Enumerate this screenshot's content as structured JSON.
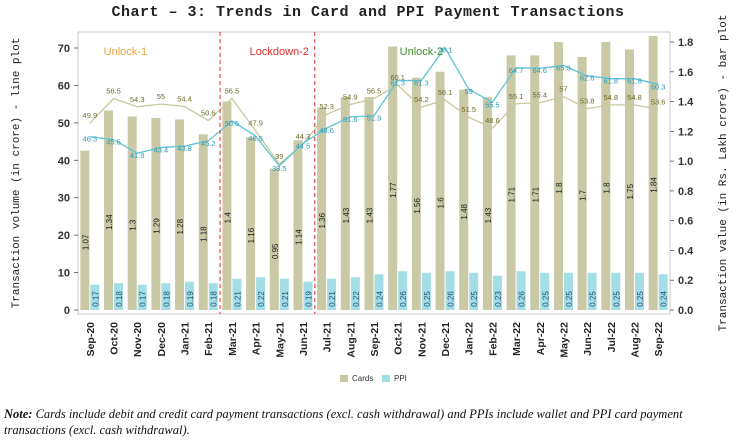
{
  "chart_data": {
    "type": "bar+line",
    "title": "Chart – 3: Trends in Card and PPI Payment Transactions",
    "categories": [
      "Sep-20",
      "Oct-20",
      "Nov-20",
      "Dec-20",
      "Jan-21",
      "Feb-21",
      "Mar-21",
      "Apr-21",
      "May-21",
      "Jun-21",
      "Jul-21",
      "Aug-21",
      "Sep-21",
      "Oct-21",
      "Nov-21",
      "Dec-21",
      "Jan-22",
      "Feb-22",
      "Mar-22",
      "Apr-22",
      "May-22",
      "Jun-22",
      "Jul-22",
      "Aug-22",
      "Sep-22"
    ],
    "bar_series": [
      {
        "name": "Cards",
        "color": "#c9c9a6",
        "label_color": "#1a1a1a",
        "values": [
          1.07,
          1.34,
          1.3,
          1.29,
          1.28,
          1.18,
          1.4,
          1.16,
          0.95,
          1.14,
          1.36,
          1.43,
          1.43,
          1.77,
          1.56,
          1.6,
          1.48,
          1.43,
          1.71,
          1.71,
          1.8,
          1.7,
          1.8,
          1.75,
          1.84
        ]
      },
      {
        "name": "PPI",
        "color": "#a3dde6",
        "label_color": "#1f4f73",
        "values": [
          0.17,
          0.18,
          0.17,
          0.18,
          0.19,
          0.18,
          0.21,
          0.22,
          0.21,
          0.19,
          0.21,
          0.22,
          0.24,
          0.26,
          0.25,
          0.26,
          0.25,
          0.23,
          0.26,
          0.25,
          0.25,
          0.25,
          0.25,
          0.25,
          0.24
        ]
      }
    ],
    "line_series": [
      {
        "name": "Cards volume",
        "color": "#c8c8a0",
        "label_color": "#6b6b2a",
        "values": [
          49.9,
          56.5,
          54.3,
          55,
          54.4,
          50.6,
          56.5,
          47.9,
          39,
          44.3,
          52.3,
          54.9,
          56.5,
          60.1,
          54.2,
          56.1,
          51.5,
          48.6,
          55.1,
          55.4,
          57,
          53.8,
          54.8,
          54.8,
          53.6
        ]
      },
      {
        "name": "PPI volume",
        "color": "#5fc3d6",
        "label_color": "#2a9ab8",
        "values": [
          46.3,
          45.5,
          41.9,
          43.4,
          43.8,
          45.2,
          50.5,
          46.5,
          38.5,
          44.5,
          48.6,
          51.6,
          51.9,
          61.3,
          61.3,
          70.1,
          59.0,
          55.5,
          64.7,
          64.6,
          65.3,
          62.6,
          61.8,
          61.8,
          60.3
        ]
      }
    ],
    "y_left": {
      "label": "Transaction volume (in crore) - line plot",
      "range": [
        0,
        70
      ],
      "ticks": [
        "0",
        "10",
        "20",
        "30",
        "40",
        "50",
        "60",
        "70"
      ]
    },
    "y_right": {
      "label": "Transaction value (in Rs. Lakh crore) - bar plot",
      "range": [
        0,
        1.8
      ],
      "ticks": [
        "0.0",
        "0.2",
        "0.4",
        "0.6",
        "0.8",
        "1.0",
        "1.2",
        "1.4",
        "1.6",
        "1.8"
      ]
    },
    "phase_markers": [
      {
        "label": "Unlock-1",
        "color": "#e8a33a",
        "position": "left"
      },
      {
        "label": "Lockdown-2",
        "color": "#e02b2b",
        "position": "center-left"
      },
      {
        "label": "Unlock-2",
        "color": "#3f8f2b",
        "position": "center-right"
      }
    ],
    "legend": [
      {
        "label": "Cards",
        "color": "#c9c9a6"
      },
      {
        "label": "PPI",
        "color": "#a3dde6"
      }
    ],
    "legend_position": "bottom-center",
    "grid": false
  },
  "note": {
    "prefix": "Note:",
    "text": " Cards include debit and credit card payment transactions (excl. cash withdrawal) and PPIs include wallet and PPI card payment transactions (excl. cash withdrawal)."
  }
}
